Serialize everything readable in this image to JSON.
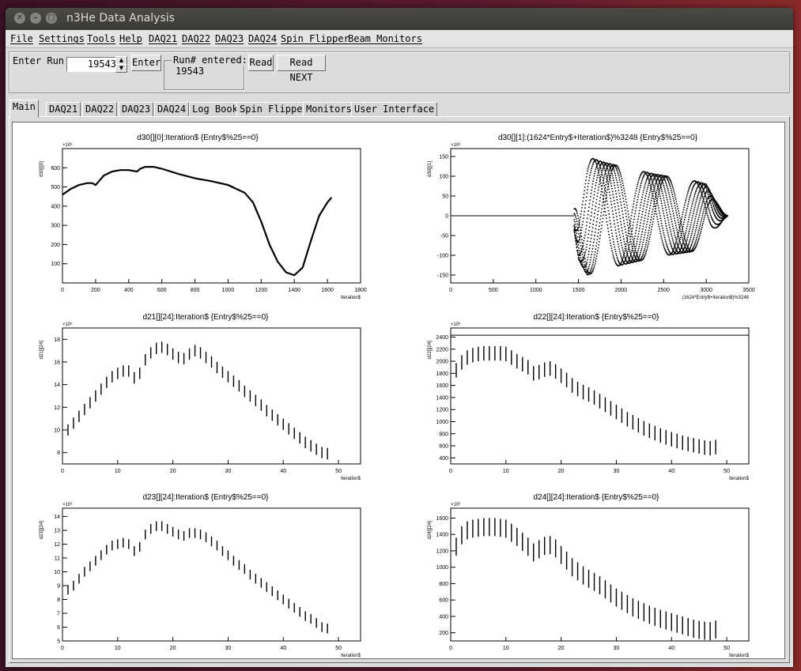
{
  "window": {
    "title": "n3He Data Analysis"
  },
  "menu": [
    "File",
    "Settings",
    "Tools",
    "Help",
    "DAQ21",
    "DAQ22",
    "DAQ23",
    "DAQ24",
    "Spin Flipper",
    "Beam Monitors"
  ],
  "run_panel": {
    "enter_run_label": "Enter Run:",
    "run_value": "19543",
    "enter_button": "Enter",
    "run_entered_label": "Run# entered:",
    "run_entered_value": "19543",
    "read_button": "Read",
    "read_next_button": "Read NEXT"
  },
  "tabs": [
    "Main",
    "DAQ21",
    "DAQ22",
    "DAQ23",
    "DAQ24",
    "Log Book",
    "Spin Flipper",
    "Monitors",
    "User Interface"
  ],
  "active_tab": "Main",
  "colors": {
    "titlebar": "#3b3a36",
    "window_bg": "#dcdcdc",
    "plot_line": "#000000"
  },
  "chart_data": [
    {
      "type": "line",
      "title": "d30[][0]:Iteration$ {Entry$%25==0}",
      "xlabel": "Iteration$",
      "ylabel": "d30[][0]",
      "multiplier": "×10⁶",
      "xlim": [
        0,
        1800
      ],
      "ylim": [
        0,
        700
      ],
      "xticks": [
        0,
        200,
        400,
        600,
        800,
        1000,
        1200,
        1400,
        1600,
        1800
      ],
      "yticks": [
        100,
        200,
        300,
        400,
        500,
        600
      ],
      "x": [
        0,
        50,
        100,
        150,
        180,
        200,
        220,
        250,
        300,
        350,
        400,
        450,
        470,
        500,
        550,
        600,
        700,
        800,
        900,
        1000,
        1100,
        1150,
        1200,
        1250,
        1300,
        1350,
        1400,
        1450,
        1500,
        1550,
        1600,
        1625
      ],
      "y": [
        460,
        490,
        510,
        520,
        520,
        510,
        530,
        560,
        580,
        588,
        588,
        580,
        595,
        605,
        605,
        595,
        568,
        545,
        530,
        510,
        470,
        420,
        320,
        200,
        110,
        55,
        40,
        80,
        220,
        350,
        420,
        445
      ]
    },
    {
      "type": "scatter",
      "title": "d30[][1]:(1624*Entry$+Iteration$)%3248 {Entry$%25==0}",
      "xlabel": "(1624*Entry$+Iteration$)%3248",
      "ylabel": "d30[][1]",
      "multiplier": "×10⁶",
      "xlim": [
        0,
        3500
      ],
      "ylim": [
        -170,
        170
      ],
      "xticks": [
        0,
        500,
        1000,
        1500,
        2000,
        2500,
        3000,
        3500
      ],
      "yticks": [
        -150,
        -100,
        -50,
        0,
        50,
        100,
        150
      ],
      "baseline_x_range": [
        0,
        1450
      ],
      "envelope": {
        "x": [
          1450,
          1500,
          1600,
          1800,
          2000,
          2200,
          2400,
          2600,
          2800,
          3000,
          3100,
          3200,
          3250
        ],
        "amp": [
          40,
          110,
          150,
          135,
          125,
          115,
          105,
          98,
          92,
          80,
          40,
          10,
          0
        ]
      }
    },
    {
      "type": "errorbar",
      "title": "d21[][24]:Iteration$ {Entry$%25==0}",
      "xlabel": "Iteration$",
      "ylabel": "d21[][24]",
      "multiplier": "×10⁶",
      "xlim": [
        0,
        54
      ],
      "ylim": [
        7,
        19
      ],
      "xticks": [
        0,
        10,
        20,
        30,
        40,
        50
      ],
      "yticks": [
        8,
        10,
        12,
        14,
        16,
        18
      ],
      "x": [
        1,
        2,
        3,
        4,
        5,
        6,
        7,
        8,
        9,
        10,
        11,
        12,
        13,
        14,
        15,
        16,
        17,
        18,
        19,
        20,
        21,
        22,
        23,
        24,
        25,
        26,
        27,
        28,
        29,
        30,
        31,
        32,
        33,
        34,
        35,
        36,
        37,
        38,
        39,
        40,
        41,
        42,
        43,
        44,
        45,
        46,
        47,
        48
      ],
      "y": [
        10.0,
        10.6,
        11.2,
        11.8,
        12.4,
        13.0,
        13.6,
        14.2,
        14.7,
        15.0,
        15.2,
        15.2,
        14.6,
        15.0,
        16.2,
        16.8,
        17.2,
        17.3,
        17.1,
        16.7,
        16.4,
        16.3,
        16.7,
        17.0,
        16.8,
        16.4,
        16.0,
        15.5,
        15.1,
        14.7,
        14.3,
        13.9,
        13.4,
        13.0,
        12.6,
        12.2,
        11.7,
        11.3,
        10.9,
        10.5,
        10.1,
        9.7,
        9.3,
        8.9,
        8.6,
        8.3,
        8.0,
        7.9
      ],
      "err": [
        0.5,
        0.5,
        0.5,
        0.5,
        0.5,
        0.5,
        0.5,
        0.5,
        0.5,
        0.5,
        0.5,
        0.5,
        0.5,
        0.5,
        0.5,
        0.5,
        0.5,
        0.5,
        0.5,
        0.5,
        0.5,
        0.5,
        0.5,
        0.5,
        0.5,
        0.5,
        0.5,
        0.5,
        0.5,
        0.5,
        0.5,
        0.5,
        0.5,
        0.5,
        0.5,
        0.5,
        0.5,
        0.5,
        0.5,
        0.5,
        0.5,
        0.5,
        0.5,
        0.5,
        0.5,
        0.5,
        0.5,
        0.5
      ]
    },
    {
      "type": "errorbar",
      "title": "d22[][24]:Iteration$ {Entry$%25==0}",
      "xlabel": "Iteration$",
      "ylabel": "d22[][24]",
      "multiplier": "×10³",
      "xlim": [
        0,
        54
      ],
      "ylim": [
        300,
        2550
      ],
      "xticks": [
        0,
        10,
        20,
        30,
        40,
        50
      ],
      "yticks": [
        400,
        600,
        800,
        1000,
        1200,
        1400,
        1600,
        1800,
        2000,
        2200,
        2400
      ],
      "hline": 2430,
      "x": [
        1,
        2,
        3,
        4,
        5,
        6,
        7,
        8,
        9,
        10,
        11,
        12,
        13,
        14,
        15,
        16,
        17,
        18,
        19,
        20,
        21,
        22,
        23,
        24,
        25,
        26,
        27,
        28,
        29,
        30,
        31,
        32,
        33,
        34,
        35,
        36,
        37,
        38,
        39,
        40,
        41,
        42,
        43,
        44,
        45,
        46,
        47,
        48
      ],
      "y": [
        1850,
        1980,
        2060,
        2100,
        2120,
        2130,
        2130,
        2130,
        2130,
        2120,
        2060,
        2000,
        1950,
        1900,
        1800,
        1820,
        1860,
        1880,
        1830,
        1760,
        1690,
        1600,
        1540,
        1490,
        1450,
        1400,
        1340,
        1280,
        1220,
        1160,
        1100,
        1040,
        990,
        940,
        890,
        850,
        810,
        770,
        740,
        710,
        680,
        650,
        630,
        610,
        590,
        570,
        560,
        580
      ],
      "err": [
        120,
        120,
        120,
        120,
        120,
        120,
        120,
        120,
        120,
        120,
        120,
        120,
        120,
        120,
        120,
        120,
        120,
        120,
        120,
        120,
        120,
        120,
        120,
        120,
        120,
        120,
        120,
        120,
        120,
        120,
        120,
        120,
        120,
        120,
        120,
        120,
        120,
        120,
        120,
        120,
        120,
        120,
        120,
        120,
        120,
        120,
        120,
        120
      ]
    },
    {
      "type": "errorbar",
      "title": "d23[][24]:Iteration$ {Entry$%25==0}",
      "xlabel": "Iteration$",
      "ylabel": "d23[][24]",
      "multiplier": "×10⁶",
      "xlim": [
        0,
        54
      ],
      "ylim": [
        5,
        14.6
      ],
      "xticks": [
        0,
        10,
        20,
        30,
        40,
        50
      ],
      "yticks": [
        5,
        6,
        7,
        8,
        9,
        10,
        11,
        12,
        13,
        14
      ],
      "x": [
        1,
        2,
        3,
        4,
        5,
        6,
        7,
        8,
        9,
        10,
        11,
        12,
        13,
        14,
        15,
        16,
        17,
        18,
        19,
        20,
        21,
        22,
        23,
        24,
        25,
        26,
        27,
        28,
        29,
        30,
        31,
        32,
        33,
        34,
        35,
        36,
        37,
        38,
        39,
        40,
        41,
        42,
        43,
        44,
        45,
        46,
        47,
        48
      ],
      "y": [
        8.7,
        9.0,
        9.5,
        10.0,
        10.4,
        10.8,
        11.2,
        11.6,
        11.9,
        12.0,
        12.1,
        12.0,
        11.5,
        11.8,
        12.7,
        13.1,
        13.3,
        13.3,
        13.1,
        12.9,
        12.7,
        12.6,
        12.8,
        12.8,
        12.7,
        12.5,
        12.2,
        11.9,
        11.5,
        11.2,
        10.8,
        10.5,
        10.2,
        9.8,
        9.5,
        9.2,
        8.9,
        8.6,
        8.3,
        8.0,
        7.7,
        7.4,
        7.1,
        6.8,
        6.6,
        6.3,
        6.0,
        5.9
      ],
      "err": [
        0.35,
        0.35,
        0.35,
        0.35,
        0.35,
        0.35,
        0.35,
        0.35,
        0.35,
        0.35,
        0.35,
        0.35,
        0.35,
        0.35,
        0.35,
        0.35,
        0.35,
        0.35,
        0.35,
        0.35,
        0.35,
        0.35,
        0.35,
        0.35,
        0.35,
        0.35,
        0.35,
        0.35,
        0.35,
        0.35,
        0.35,
        0.35,
        0.35,
        0.35,
        0.35,
        0.35,
        0.35,
        0.35,
        0.35,
        0.35,
        0.35,
        0.35,
        0.35,
        0.35,
        0.35,
        0.35,
        0.35,
        0.35
      ]
    },
    {
      "type": "errorbar",
      "title": "d24[][24]:Iteration$ {Entry$%25==0}",
      "xlabel": "Iteration$",
      "ylabel": "d24[][24]",
      "multiplier": "×10³",
      "xlim": [
        0,
        54
      ],
      "ylim": [
        100,
        1720
      ],
      "xticks": [
        0,
        10,
        20,
        30,
        40,
        50
      ],
      "yticks": [
        200,
        400,
        600,
        800,
        1000,
        1200,
        1400,
        1600
      ],
      "x": [
        1,
        2,
        3,
        4,
        5,
        6,
        7,
        8,
        9,
        10,
        11,
        12,
        13,
        14,
        15,
        16,
        17,
        18,
        19,
        20,
        21,
        22,
        23,
        24,
        25,
        26,
        27,
        28,
        29,
        30,
        31,
        32,
        33,
        34,
        35,
        36,
        37,
        38,
        39,
        40,
        41,
        42,
        43,
        44,
        45,
        46,
        47,
        48
      ],
      "y": [
        1250,
        1390,
        1450,
        1470,
        1480,
        1490,
        1490,
        1490,
        1480,
        1470,
        1420,
        1370,
        1310,
        1250,
        1180,
        1220,
        1260,
        1270,
        1230,
        1150,
        1080,
        1000,
        950,
        900,
        860,
        820,
        780,
        730,
        680,
        630,
        590,
        550,
        510,
        480,
        450,
        420,
        395,
        370,
        350,
        330,
        310,
        290,
        270,
        250,
        235,
        225,
        220,
        240
      ],
      "err": [
        110,
        110,
        110,
        110,
        110,
        110,
        110,
        110,
        110,
        110,
        110,
        110,
        110,
        110,
        110,
        110,
        110,
        110,
        110,
        110,
        110,
        110,
        110,
        110,
        110,
        110,
        110,
        110,
        110,
        110,
        110,
        110,
        110,
        110,
        110,
        110,
        110,
        110,
        110,
        110,
        110,
        110,
        110,
        110,
        110,
        110,
        110,
        110
      ]
    }
  ]
}
